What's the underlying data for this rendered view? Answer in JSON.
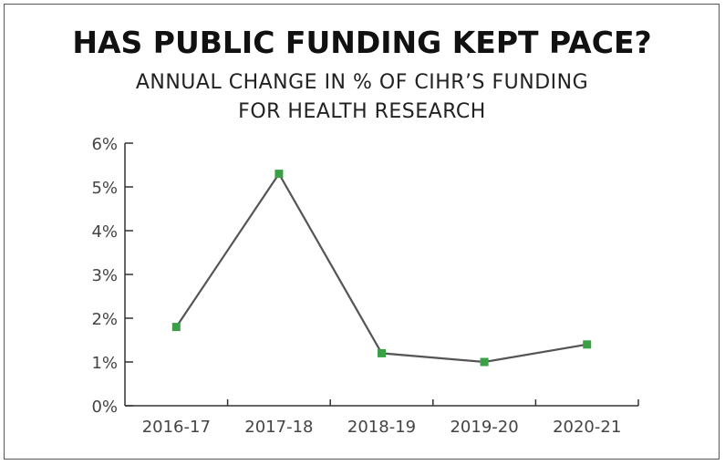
{
  "chart_data": {
    "type": "line",
    "title": "HAS PUBLIC FUNDING KEPT PACE?",
    "subtitle_lines": [
      "ANNUAL CHANGE IN % OF CIHR’S FUNDING",
      "FOR HEALTH RESEARCH"
    ],
    "xlabel": "",
    "ylabel": "",
    "categories": [
      "2016-17",
      "2017-18",
      "2018-19",
      "2019-20",
      "2020-21"
    ],
    "series": [
      {
        "values": [
          1.8,
          5.3,
          1.2,
          1.0,
          1.4
        ]
      }
    ],
    "yticks": [
      "0%",
      "1%",
      "2%",
      "3%",
      "4%",
      "5%",
      "6%"
    ],
    "ylim": [
      0,
      6
    ],
    "grid": false,
    "colors": {
      "line": "#555555",
      "marker": "#3aa046",
      "axis": "#333333"
    }
  }
}
